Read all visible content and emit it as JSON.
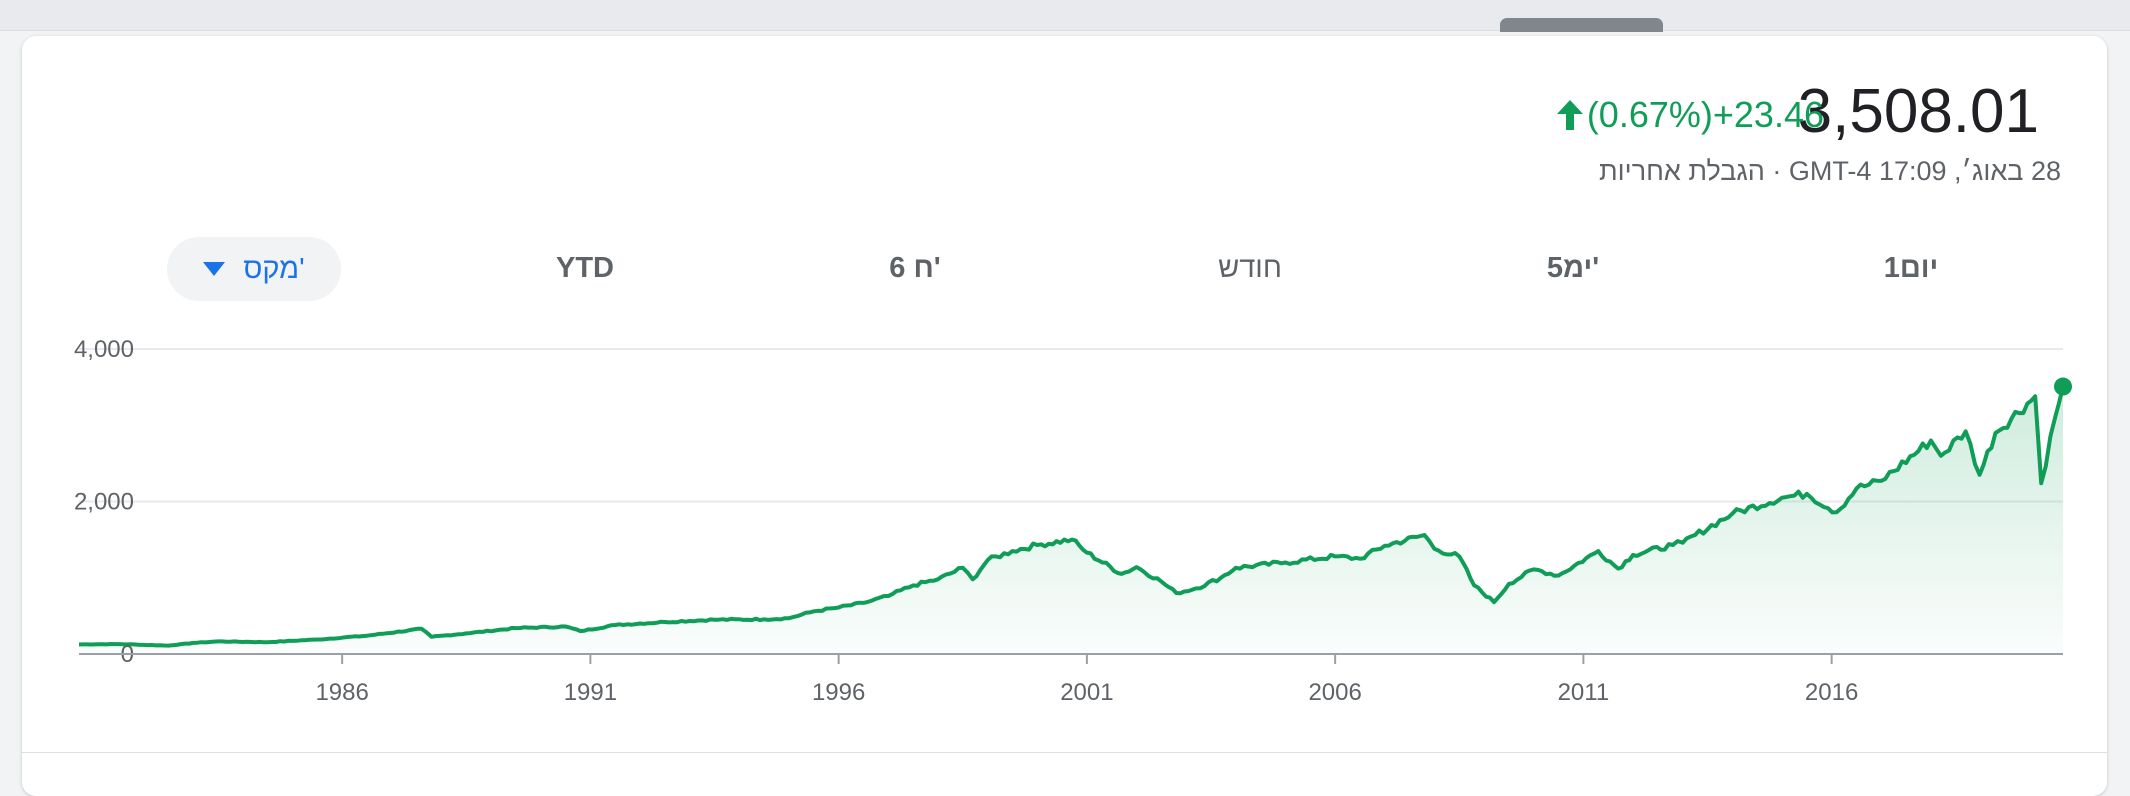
{
  "quote": {
    "price": "3,508.01",
    "change": "+23.46",
    "change_pct": "(0.67%)",
    "direction": "up",
    "timestamp": "28 באוג׳, 17:09 GMT-4 · הגבלת אחריות"
  },
  "colors": {
    "up": "#0f9d58",
    "price": "#202124",
    "accent": "#1a73e8"
  },
  "ranges": {
    "tabs": [
      "1יום",
      "5ימ'",
      "חודש",
      "6 ח'",
      "YTD"
    ],
    "selected": "מקס'"
  },
  "chart_data": {
    "type": "area",
    "xlabel": "",
    "ylabel": "",
    "x_ticks": [
      "1986",
      "1991",
      "1996",
      "2001",
      "2006",
      "2011",
      "2016"
    ],
    "y_ticks": [
      "0",
      "2,000",
      "4,000"
    ],
    "ylim": [
      0,
      4000
    ],
    "xlim": [
      1980.7,
      2020.66
    ],
    "grid": true,
    "series": [
      {
        "points": [
          [
            1980.7,
            125
          ],
          [
            1981.5,
            130
          ],
          [
            1982.5,
            110
          ],
          [
            1983.0,
            145
          ],
          [
            1983.5,
            165
          ],
          [
            1984.5,
            155
          ],
          [
            1985.5,
            190
          ],
          [
            1986.5,
            240
          ],
          [
            1987.6,
            330
          ],
          [
            1987.8,
            225
          ],
          [
            1988.5,
            270
          ],
          [
            1989.5,
            340
          ],
          [
            1990.5,
            360
          ],
          [
            1990.8,
            300
          ],
          [
            1991.5,
            380
          ],
          [
            1992.5,
            420
          ],
          [
            1993.5,
            450
          ],
          [
            1994.5,
            455
          ],
          [
            1995.0,
            470
          ],
          [
            1995.5,
            560
          ],
          [
            1996.0,
            610
          ],
          [
            1996.5,
            670
          ],
          [
            1997.0,
            760
          ],
          [
            1997.5,
            900
          ],
          [
            1998.0,
            980
          ],
          [
            1998.5,
            1130
          ],
          [
            1998.7,
            980
          ],
          [
            1999.0,
            1230
          ],
          [
            1999.5,
            1350
          ],
          [
            2000.0,
            1430
          ],
          [
            2000.7,
            1500
          ],
          [
            2001.0,
            1330
          ],
          [
            2001.7,
            1050
          ],
          [
            2002.0,
            1140
          ],
          [
            2002.5,
            950
          ],
          [
            2002.8,
            800
          ],
          [
            2003.2,
            860
          ],
          [
            2003.7,
            1000
          ],
          [
            2004.0,
            1130
          ],
          [
            2005.0,
            1200
          ],
          [
            2006.0,
            1280
          ],
          [
            2006.5,
            1250
          ],
          [
            2007.0,
            1420
          ],
          [
            2007.8,
            1560
          ],
          [
            2008.0,
            1380
          ],
          [
            2008.5,
            1280
          ],
          [
            2008.8,
            900
          ],
          [
            2009.2,
            680
          ],
          [
            2009.5,
            920
          ],
          [
            2010.0,
            1110
          ],
          [
            2010.5,
            1030
          ],
          [
            2011.3,
            1350
          ],
          [
            2011.7,
            1120
          ],
          [
            2012.0,
            1300
          ],
          [
            2012.8,
            1430
          ],
          [
            2013.0,
            1460
          ],
          [
            2014.0,
            1840
          ],
          [
            2015.0,
            2050
          ],
          [
            2015.5,
            2100
          ],
          [
            2016.1,
            1860
          ],
          [
            2016.5,
            2170
          ],
          [
            2017.0,
            2270
          ],
          [
            2018.0,
            2800
          ],
          [
            2018.2,
            2600
          ],
          [
            2018.7,
            2920
          ],
          [
            2018.98,
            2350
          ],
          [
            2019.3,
            2900
          ],
          [
            2020.1,
            3380
          ],
          [
            2020.22,
            2240
          ],
          [
            2020.5,
            3100
          ],
          [
            2020.66,
            3508
          ]
        ]
      }
    ]
  }
}
